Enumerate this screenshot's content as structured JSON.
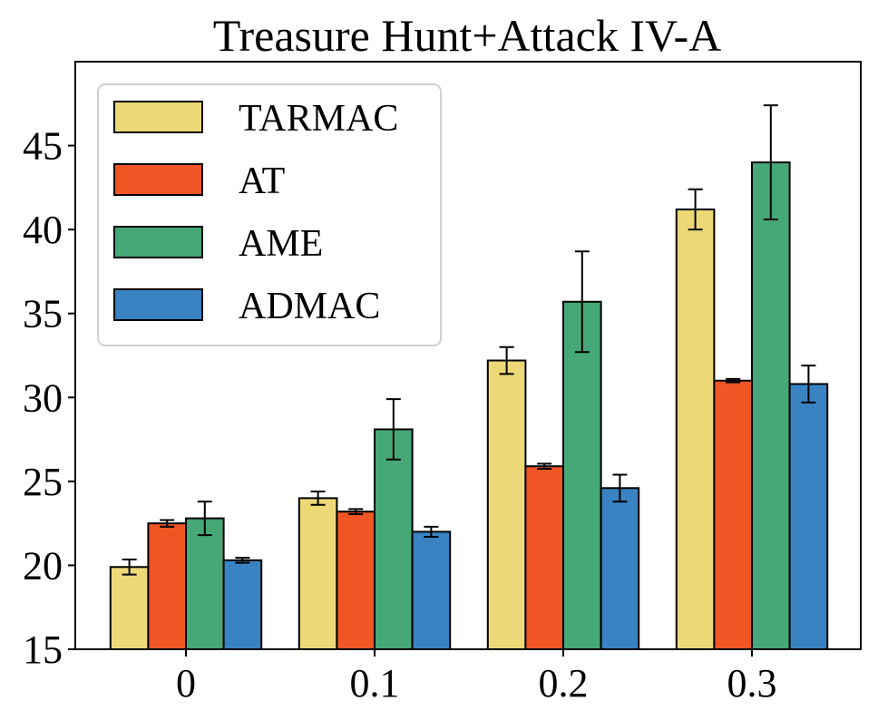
{
  "chart_data": {
    "type": "bar",
    "title": "Treasure Hunt+Attack IV-A",
    "xlabel": "",
    "ylabel": "",
    "categories": [
      "0",
      "0.1",
      "0.2",
      "0.3"
    ],
    "ylim": [
      15,
      50
    ],
    "yticks": [
      "15",
      "20",
      "25",
      "30",
      "35",
      "40",
      "45"
    ],
    "grid": false,
    "legend_position": "top-left",
    "series": [
      {
        "name": "TARMAC",
        "color": "#EDD878",
        "values": [
          19.9,
          24.0,
          32.2,
          41.2
        ],
        "errors": [
          0.45,
          0.4,
          0.8,
          1.2
        ]
      },
      {
        "name": "AT",
        "color": "#F05523",
        "values": [
          22.5,
          23.2,
          25.9,
          31.0
        ],
        "errors": [
          0.2,
          0.15,
          0.15,
          0.1
        ]
      },
      {
        "name": "AME",
        "color": "#46A876",
        "values": [
          22.8,
          28.1,
          35.7,
          44.0
        ],
        "errors": [
          1.0,
          1.8,
          3.0,
          3.4
        ]
      },
      {
        "name": "ADMAC",
        "color": "#3A83C2",
        "values": [
          20.3,
          22.0,
          24.6,
          30.8
        ],
        "errors": [
          0.15,
          0.3,
          0.8,
          1.1
        ]
      }
    ]
  }
}
